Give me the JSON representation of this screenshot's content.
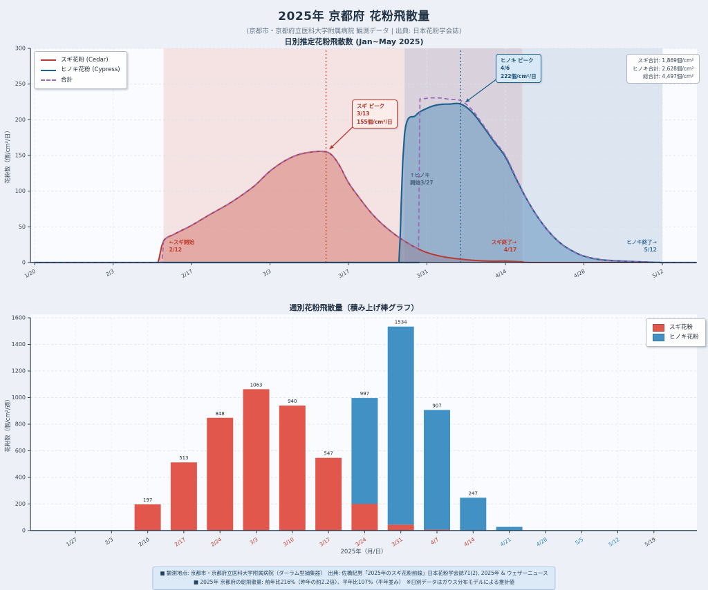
{
  "page": {
    "title": "2025年 京都府 花粉飛散量",
    "subtitle": "(京都市・京都府立医科大学附属病院 観測データ | 出典: 日本花粉学会誌)"
  },
  "colors": {
    "cedar_line": "#b63a32",
    "cedar_bar": "#e2574c",
    "cypress_line": "#1f618d",
    "cypress_bar": "#4191c5",
    "total_line": "#9b6bb5",
    "accent_red": "#c0392b",
    "accent_blue": "#2e86c1",
    "dark_text": "#333f4d"
  },
  "chart_data": [
    {
      "id": "daily",
      "type": "area",
      "title": "日別推定花粉飛散数 (Jan~May 2025)",
      "ylabel": "花粉数（個/cm²/日）",
      "ylim": [
        0,
        300
      ],
      "yticks": [
        0,
        50,
        100,
        150,
        200,
        250,
        300
      ],
      "xtick_labels": [
        "1/20",
        "2/3",
        "2/17",
        "3/3",
        "3/17",
        "3/31",
        "4/14",
        "4/28",
        "5/12"
      ],
      "x_start": "1/20",
      "x_end": "5/18",
      "grid": true,
      "legend_position": "upper-left",
      "legend": [
        {
          "label": "スギ花粉 (Cedar)",
          "color": "#b63a32",
          "dash": false
        },
        {
          "label": "ヒノキ花粉 (Cypress)",
          "color": "#1f618d",
          "dash": false
        },
        {
          "label": "合計",
          "color": "#9b6bb5",
          "dash": true
        }
      ],
      "series": [
        {
          "name": "スギ花粉 (Cedar)",
          "color": "#b63a32",
          "fill": "rgba(205,92,80,0.42)",
          "points": [
            [
              "1/20",
              0
            ],
            [
              "2/10",
              0
            ],
            [
              "2/11",
              0
            ],
            [
              "2/12",
              30
            ],
            [
              "2/14",
              40
            ],
            [
              "2/17",
              52
            ],
            [
              "2/20",
              66
            ],
            [
              "2/24",
              84
            ],
            [
              "2/28",
              106
            ],
            [
              "3/3",
              128
            ],
            [
              "3/6",
              144
            ],
            [
              "3/9",
              153
            ],
            [
              "3/13",
              155
            ],
            [
              "3/15",
              141
            ],
            [
              "3/17",
              112
            ],
            [
              "3/19",
              90
            ],
            [
              "3/21",
              70
            ],
            [
              "3/23",
              54
            ],
            [
              "3/25",
              41
            ],
            [
              "3/27",
              30
            ],
            [
              "3/29",
              21
            ],
            [
              "3/31",
              14
            ],
            [
              "4/3",
              8
            ],
            [
              "4/7",
              4
            ],
            [
              "4/11",
              2
            ],
            [
              "4/14",
              2
            ],
            [
              "4/17",
              1
            ],
            [
              "4/20",
              0
            ],
            [
              "5/18",
              0
            ]
          ]
        },
        {
          "name": "ヒノキ花粉 (Cypress)",
          "color": "#1f618d",
          "fill": "rgba(96,148,192,0.55)",
          "points": [
            [
              "1/20",
              0
            ],
            [
              "3/25",
              0
            ],
            [
              "3/26",
              0
            ],
            [
              "3/27",
              180
            ],
            [
              "3/29",
              206
            ],
            [
              "3/31",
              216
            ],
            [
              "4/2",
              221
            ],
            [
              "4/4",
              222
            ],
            [
              "4/6",
              222
            ],
            [
              "4/8",
              211
            ],
            [
              "4/10",
              191
            ],
            [
              "4/12",
              169
            ],
            [
              "4/14",
              148
            ],
            [
              "4/16",
              116
            ],
            [
              "4/18",
              86
            ],
            [
              "4/20",
              61
            ],
            [
              "4/22",
              41
            ],
            [
              "4/24",
              26
            ],
            [
              "4/26",
              16
            ],
            [
              "4/28",
              9
            ],
            [
              "5/1",
              4
            ],
            [
              "5/5",
              2
            ],
            [
              "5/8",
              1
            ],
            [
              "5/12",
              0
            ],
            [
              "5/18",
              0
            ]
          ]
        }
      ],
      "total": {
        "name": "合計",
        "color": "#9b6bb5"
      },
      "regions": [
        {
          "name": "cedar-season-band",
          "from": "2/12",
          "to": "4/17",
          "color": "rgba(226,106,95,0.16)"
        },
        {
          "name": "cypress-season-band",
          "from": "3/27",
          "to": "5/12",
          "color": "rgba(105,144,190,0.20)"
        }
      ],
      "peaks": [
        {
          "name": "cedar-peak",
          "date": "3/13",
          "color": "#c0392b",
          "box": {
            "title": "スギ ピーク",
            "line2": "3/13",
            "line3": "155個/cm²/日"
          }
        },
        {
          "name": "cypress-peak",
          "date": "4/6",
          "color": "#21618c",
          "box": {
            "title": "ヒノキ ピーク",
            "line2": "4/6",
            "line3": "222個/cm²/日"
          }
        }
      ],
      "inplot_notes": [
        {
          "name": "cedar-start-note",
          "lines": [
            "←スギ開始",
            "2/12"
          ],
          "x_date": "2/13",
          "y": 26,
          "anchor": "start",
          "color": "#c0392b"
        },
        {
          "name": "cypress-start-note",
          "lines": [
            "↑ヒノキ",
            "開始3/27"
          ],
          "x_date": "3/28",
          "y": 120,
          "anchor": "start",
          "color": "#44607a"
        },
        {
          "name": "cedar-end-note",
          "lines": [
            "スギ終了→",
            "4/17"
          ],
          "x_date": "4/16",
          "y": 26,
          "anchor": "end",
          "color": "#c0392b"
        },
        {
          "name": "cypress-end-note",
          "lines": [
            "ヒノキ終了→",
            "5/12"
          ],
          "x_date": "5/11",
          "y": 26,
          "anchor": "end",
          "color": "#3f74a3"
        }
      ],
      "totals_box": {
        "lines": [
          "スギ合計: 1,869個/cm²",
          "ヒノキ合計: 2,628個/cm²",
          "総合計: 4,497個/cm²"
        ]
      }
    },
    {
      "id": "weekly",
      "type": "bar",
      "title": "週別花粉飛散量（積み上げ棒グラフ）",
      "ylabel": "花粉数（個/cm²/週）",
      "xlabel": "2025年（月/日）",
      "ylim": [
        0,
        1600
      ],
      "yticks": [
        0,
        200,
        400,
        600,
        800,
        1000,
        1200,
        1400,
        1600
      ],
      "grid": true,
      "legend_position": "upper-right",
      "categories": [
        "1/27",
        "2/3",
        "2/10",
        "2/17",
        "2/24",
        "3/3",
        "3/10",
        "3/17",
        "3/24",
        "3/31",
        "4/7",
        "4/14",
        "4/21",
        "4/28",
        "5/5",
        "5/12",
        "5/19"
      ],
      "series": [
        {
          "name": "スギ花粉",
          "color": "#e2574c",
          "values": [
            0,
            0,
            197,
            513,
            848,
            1063,
            940,
            547,
            200,
            45,
            8,
            0,
            0,
            0,
            0,
            0,
            0
          ]
        },
        {
          "name": "ヒノキ花粉",
          "color": "#4191c5",
          "values": [
            0,
            0,
            0,
            0,
            0,
            0,
            0,
            0,
            797,
            1489,
            899,
            247,
            28,
            0,
            0,
            0,
            0
          ]
        }
      ],
      "bar_labels": [
        "",
        "",
        "197",
        "513",
        "848",
        "1063",
        "940",
        "547",
        "997",
        "1534",
        "907",
        "247",
        "",
        "",
        "",
        "",
        ""
      ],
      "tick_colors": [
        "#333f4d",
        "#333f4d",
        "#333f4d",
        "#c0392b",
        "#c0392b",
        "#c0392b",
        "#c0392b",
        "#c0392b",
        "#c0392b",
        "#c0392b",
        "#c0392b",
        "#c0392b",
        "#2e86c1",
        "#2e86c1",
        "#2e86c1",
        "#2e86c1",
        "#333f4d"
      ],
      "legend": [
        {
          "label": "スギ花粉",
          "color": "#e2574c"
        },
        {
          "label": "ヒノキ花粉",
          "color": "#4191c5"
        }
      ]
    }
  ],
  "footer": {
    "line1": "■ 観測地点: 京都市・京都府立医科大学附属病院（ダーラム型捕集器）　出典: 佐橋紀男「2025年のスギ花粉前線」日本花粉学会誌71(2), 2025年 & ウェザーニュース",
    "line2": "■ 2025年 京都府の総飛散量: 前年比216%（昨年の約2.2倍）、平年比107%（平年並み）　※日別データはガウス分布モデルによる推計値"
  }
}
